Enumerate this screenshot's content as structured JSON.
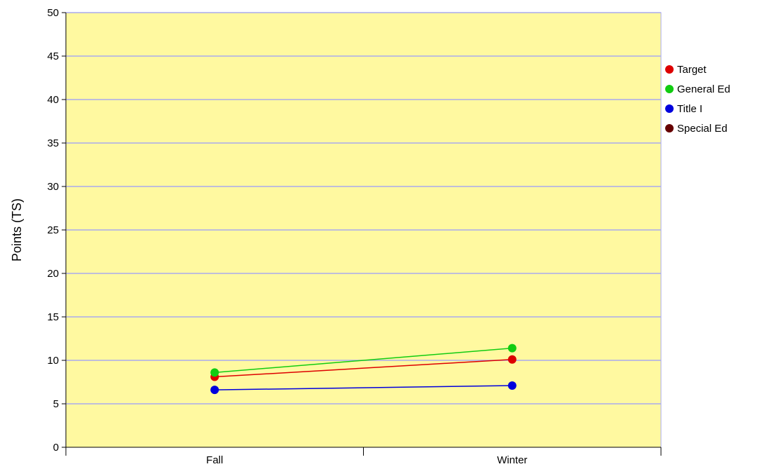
{
  "chart_data": {
    "type": "line",
    "title": "",
    "xlabel": "",
    "ylabel": "Points (TS)",
    "categories": [
      "Fall",
      "Winter"
    ],
    "ylim": [
      0,
      50
    ],
    "yticks": [
      "0",
      "5",
      "10",
      "15",
      "20",
      "25",
      "30",
      "35",
      "40",
      "45",
      "50"
    ],
    "grid": true,
    "legend_position": "right",
    "plot_background": "#fff9a0",
    "grid_color": "#aaaaee",
    "series": [
      {
        "name": "Target",
        "color": "#dd0000",
        "values": [
          8.1,
          10.1
        ]
      },
      {
        "name": "General Ed",
        "color": "#11cc11",
        "values": [
          8.6,
          11.4
        ]
      },
      {
        "name": "Title I",
        "color": "#0000dd",
        "values": [
          6.6,
          7.1
        ]
      },
      {
        "name": "Special Ed",
        "color": "#660000",
        "values": [
          null,
          null
        ]
      }
    ]
  }
}
